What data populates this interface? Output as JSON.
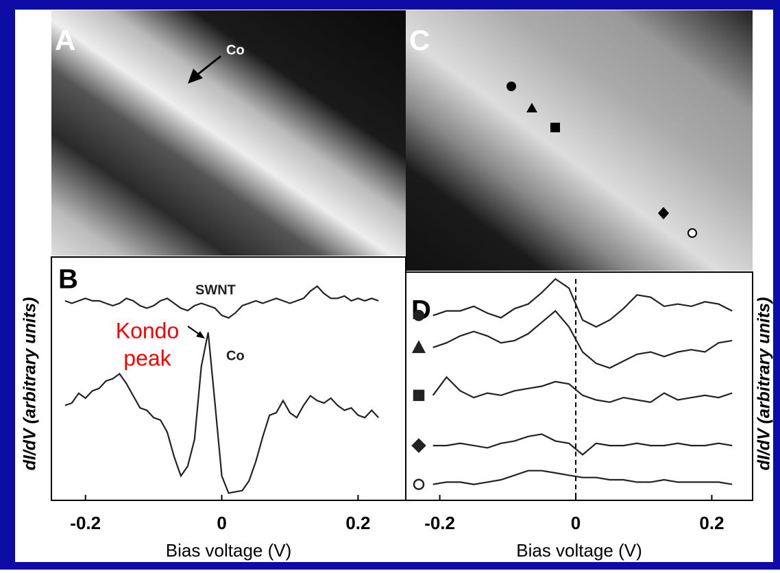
{
  "images": [
    {
      "panel_label": "A",
      "annotation": "Co"
    },
    {
      "panel_label": "C"
    }
  ],
  "chart_data": [
    {
      "type": "line",
      "panel_label": "B",
      "xlabel": "Bias voltage (V)",
      "ylabel": "dI/dV (arbitrary units)",
      "xlim": [
        -0.25,
        0.27
      ],
      "xticks": [
        -0.2,
        0,
        0.2
      ],
      "ylim": [
        0,
        10
      ],
      "annotation": [
        "Kondo",
        "peak"
      ],
      "annotation_color": "#ff0000",
      "x": [
        -0.23,
        -0.22,
        -0.21,
        -0.2,
        -0.19,
        -0.18,
        -0.17,
        -0.16,
        -0.15,
        -0.14,
        -0.13,
        -0.12,
        -0.11,
        -0.1,
        -0.09,
        -0.08,
        -0.07,
        -0.06,
        -0.05,
        -0.04,
        -0.03,
        -0.02,
        -0.01,
        0,
        0.01,
        0.02,
        0.03,
        0.04,
        0.05,
        0.06,
        0.07,
        0.08,
        0.09,
        0.1,
        0.11,
        0.12,
        0.13,
        0.14,
        0.15,
        0.16,
        0.17,
        0.18,
        0.19,
        0.2,
        0.21,
        0.22,
        0.23
      ],
      "series": [
        {
          "name": "SWNT",
          "color": "#222222",
          "values": [
            8.2,
            8.1,
            8.2,
            8.3,
            8.2,
            8.2,
            8.1,
            8.0,
            8.1,
            8.3,
            8.2,
            8.0,
            7.9,
            8.0,
            8.2,
            8.3,
            8.1,
            7.9,
            7.8,
            8.0,
            8.1,
            8.0,
            7.9,
            7.6,
            7.5,
            7.7,
            8.0,
            8.1,
            8.2,
            8.1,
            8.2,
            8.3,
            8.2,
            8.1,
            8.2,
            8.3,
            8.6,
            8.8,
            8.5,
            8.3,
            8.3,
            8.4,
            8.2,
            8.3,
            8.2,
            8.3,
            8.2
          ]
        },
        {
          "name": "Co",
          "color": "#222222",
          "values": [
            3.9,
            4.0,
            4.4,
            4.2,
            4.5,
            4.6,
            4.9,
            5.0,
            5.2,
            4.8,
            4.3,
            3.8,
            3.7,
            3.4,
            3.3,
            2.8,
            1.8,
            1.0,
            1.4,
            2.5,
            5.5,
            6.9,
            4.0,
            1.0,
            0.3,
            0.35,
            0.4,
            0.8,
            1.6,
            2.6,
            3.5,
            3.6,
            4.1,
            3.6,
            3.4,
            3.9,
            4.3,
            4.1,
            4.0,
            4.2,
            3.9,
            3.7,
            3.8,
            3.5,
            3.4,
            3.7,
            3.4
          ]
        }
      ]
    },
    {
      "type": "line",
      "panel_label": "D",
      "xlabel": "Bias voltage (V)",
      "ylabel": "dI/dV (arbitrary units)",
      "xlim": [
        -0.25,
        0.26
      ],
      "xticks": [
        -0.2,
        0,
        0.2
      ],
      "ylim": [
        0,
        10
      ],
      "reference_line": 0,
      "x": [
        -0.21,
        -0.19,
        -0.17,
        -0.15,
        -0.13,
        -0.11,
        -0.09,
        -0.07,
        -0.05,
        -0.03,
        -0.01,
        0.01,
        0.03,
        0.05,
        0.07,
        0.09,
        0.11,
        0.13,
        0.15,
        0.17,
        0.19,
        0.21,
        0.23
      ],
      "series": [
        {
          "marker": "circle",
          "filled": true,
          "color": "#222222",
          "values": [
            8.1,
            8.3,
            8.3,
            8.5,
            8.2,
            8.0,
            8.4,
            8.6,
            9.1,
            9.7,
            9.3,
            7.9,
            7.6,
            7.9,
            8.4,
            9.0,
            8.9,
            8.5,
            8.6,
            8.5,
            8.7,
            8.6,
            8.3
          ]
        },
        {
          "marker": "triangle",
          "filled": true,
          "color": "#222222",
          "values": [
            6.7,
            6.9,
            7.2,
            7.4,
            7.2,
            6.9,
            7.0,
            7.3,
            7.8,
            8.3,
            7.6,
            6.5,
            6.0,
            5.8,
            6.1,
            6.4,
            6.5,
            6.3,
            6.5,
            6.6,
            6.5,
            6.9,
            7.0
          ]
        },
        {
          "marker": "square",
          "filled": true,
          "color": "#222222",
          "values": [
            4.6,
            5.4,
            4.8,
            4.5,
            4.7,
            4.6,
            4.8,
            4.9,
            5.0,
            5.2,
            5.1,
            4.6,
            4.4,
            4.3,
            4.5,
            4.4,
            4.3,
            4.7,
            4.4,
            4.5,
            4.6,
            4.5,
            4.7
          ]
        },
        {
          "marker": "diamond",
          "filled": true,
          "color": "#222222",
          "values": [
            2.4,
            2.4,
            2.5,
            2.4,
            2.3,
            2.5,
            2.6,
            2.8,
            2.9,
            2.6,
            2.5,
            2.0,
            2.5,
            2.4,
            2.4,
            2.5,
            2.4,
            2.4,
            2.5,
            2.4,
            2.4,
            2.5,
            2.4
          ]
        },
        {
          "marker": "circle",
          "filled": false,
          "color": "#222222",
          "values": [
            0.7,
            0.8,
            0.8,
            0.7,
            0.8,
            0.9,
            1.1,
            1.3,
            1.3,
            1.2,
            1.1,
            1.0,
            1.0,
            0.9,
            0.9,
            0.8,
            0.8,
            0.9,
            0.8,
            0.8,
            0.8,
            0.8,
            0.7
          ]
        }
      ]
    }
  ]
}
